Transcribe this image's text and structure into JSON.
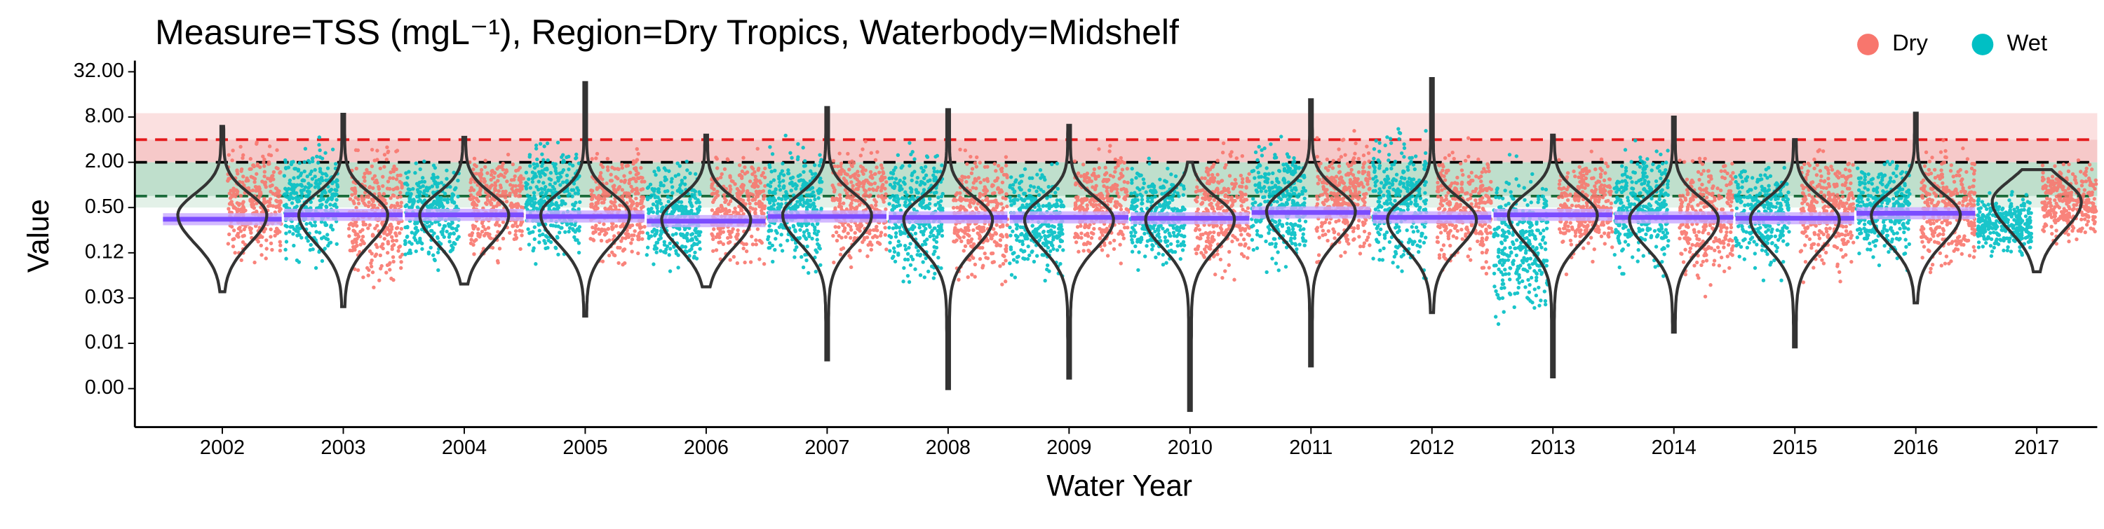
{
  "chart_data": {
    "type": "violin",
    "title": "Measure=TSS (mgL⁻¹), Region=Dry Tropics, Waterbody=Midshelf",
    "x_label": "Water Year",
    "y_label": "Value",
    "log_scale": true,
    "categories": [
      "2002",
      "2003",
      "2004",
      "2005",
      "2006",
      "2007",
      "2008",
      "2009",
      "2010",
      "2011",
      "2012",
      "2013",
      "2014",
      "2015",
      "2016",
      "2017"
    ],
    "ylim": [
      0.0006,
      45
    ],
    "yticks": [
      {
        "value": 32,
        "label": "32.00"
      },
      {
        "value": 8,
        "label": "8.00"
      },
      {
        "value": 2,
        "label": "2.00"
      },
      {
        "value": 0.5,
        "label": "0.50"
      },
      {
        "value": 0.125,
        "label": "0.12"
      },
      {
        "value": 0.03125,
        "label": "0.03"
      },
      {
        "value": 0.0078125,
        "label": "0.01"
      },
      {
        "value": 0.001953125,
        "label": "0.00"
      }
    ],
    "legend_position": "top-right",
    "series": [
      {
        "name": "Dry",
        "color": "#F8766D",
        "low": [
          0.06,
          0.03,
          0.07,
          0.05,
          0.06,
          0.06,
          0.03,
          0.06,
          0.04,
          0.07,
          0.05,
          0.06,
          0.03,
          0.04,
          0.05,
          0.12
        ],
        "high": [
          5,
          6,
          5,
          5,
          4,
          5,
          5,
          4.5,
          5,
          6,
          5,
          4,
          4,
          4.5,
          5,
          3
        ]
      },
      {
        "name": "Wet",
        "color": "#00BFC4",
        "low": [
          null,
          0.06,
          0.06,
          0.06,
          0.05,
          0.04,
          0.03,
          0.04,
          0.05,
          0.05,
          0.04,
          0.01,
          0.04,
          0.05,
          0.06,
          0.1
        ],
        "high": [
          null,
          5,
          3,
          6,
          3,
          6,
          5,
          3,
          3,
          7,
          8,
          3,
          6,
          3,
          3,
          1
        ]
      }
    ],
    "violins": {
      "color": "#333333",
      "min": [
        0.038,
        0.024,
        0.048,
        0.018,
        0.044,
        0.0047,
        0.00195,
        0.0027,
        0.001,
        0.0039,
        0.02,
        0.0028,
        0.011,
        0.007,
        0.027,
        0.07
      ],
      "max": [
        6,
        8.7,
        4.3,
        23,
        4.6,
        10.7,
        10,
        6.2,
        2,
        13.6,
        26,
        4.6,
        8,
        4,
        9,
        1.6
      ],
      "mode": [
        0.4,
        0.4,
        0.4,
        0.4,
        0.35,
        0.4,
        0.35,
        0.35,
        0.35,
        0.45,
        0.35,
        0.4,
        0.35,
        0.35,
        0.4,
        0.6
      ]
    },
    "trend": {
      "color": "#7b4dff",
      "values": [
        0.35,
        0.4,
        0.4,
        0.38,
        0.33,
        0.38,
        0.37,
        0.37,
        0.36,
        0.43,
        0.37,
        0.4,
        0.37,
        0.36,
        0.42,
        null
      ]
    },
    "bands": [
      {
        "from": 4,
        "to": 9,
        "color": "#fbe0e0"
      },
      {
        "from": 2,
        "to": 4,
        "color": "#f6c9c9"
      },
      {
        "from": 0.71,
        "to": 2,
        "color": "#bfdfcc"
      },
      {
        "from": 0.5,
        "to": 0.71,
        "color": "#e3f1e8"
      }
    ],
    "reference_lines": [
      {
        "value": 4,
        "color": "#e41a1c"
      },
      {
        "value": 2,
        "color": "#000000"
      },
      {
        "value": 0.71,
        "color": "#1b6b3a"
      }
    ]
  }
}
